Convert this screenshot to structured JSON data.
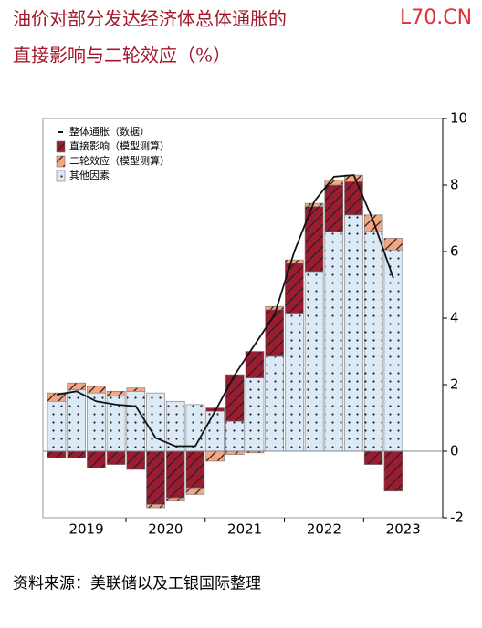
{
  "title_lines": [
    "油价对部分发达经济体总体通胀的",
    "直接影响与二轮效应（%）"
  ],
  "watermark": "L70.CN",
  "source": "资料来源：美联储以及工银国际整理",
  "chart_data": {
    "type": "bar",
    "stacked": true,
    "categories": [
      null,
      null,
      null,
      null,
      null,
      null,
      null,
      null,
      null,
      null,
      null,
      null,
      null,
      null,
      null,
      null,
      null,
      null
    ],
    "xlabels": [
      "2019",
      "2020",
      "2021",
      "2022",
      "2023"
    ],
    "series": [
      {
        "name": "整体通胀（数据）",
        "color": "#111111",
        "type": "line",
        "values": [
          1.7,
          1.8,
          1.5,
          1.4,
          1.35,
          0.4,
          0.15,
          0.15,
          1.2,
          2.3,
          3.2,
          4.1,
          6.0,
          7.5,
          8.25,
          8.3,
          6.9,
          5.2
        ]
      },
      {
        "name": "直接影响（模型测算）",
        "color": "#9b1b30",
        "pattern": "hatch",
        "values": [
          -0.2,
          -0.2,
          -0.5,
          -0.4,
          -0.55,
          -1.6,
          -1.4,
          -1.1,
          0.1,
          1.4,
          0.8,
          1.4,
          1.5,
          1.95,
          1.4,
          1.0,
          -0.4,
          -1.2
        ]
      },
      {
        "name": "二轮效应（模型测算）",
        "color": "#f4a582",
        "pattern": "hatch",
        "values": [
          0.25,
          0.2,
          0.2,
          0.15,
          0.1,
          -0.1,
          -0.1,
          -0.2,
          -0.3,
          -0.1,
          -0.05,
          0.1,
          0.1,
          0.1,
          0.15,
          0.2,
          0.5,
          0.35
        ]
      },
      {
        "name": "其他因素",
        "color": "#dce9f7",
        "pattern": "dots",
        "values": [
          1.5,
          1.85,
          1.75,
          1.65,
          1.8,
          1.75,
          1.5,
          1.4,
          1.2,
          0.9,
          2.2,
          2.85,
          4.15,
          5.4,
          6.6,
          7.1,
          6.6,
          6.05
        ]
      }
    ],
    "ylim": [
      -2,
      10
    ],
    "yticks": [
      -2,
      0,
      2,
      4,
      6,
      8,
      10
    ]
  }
}
